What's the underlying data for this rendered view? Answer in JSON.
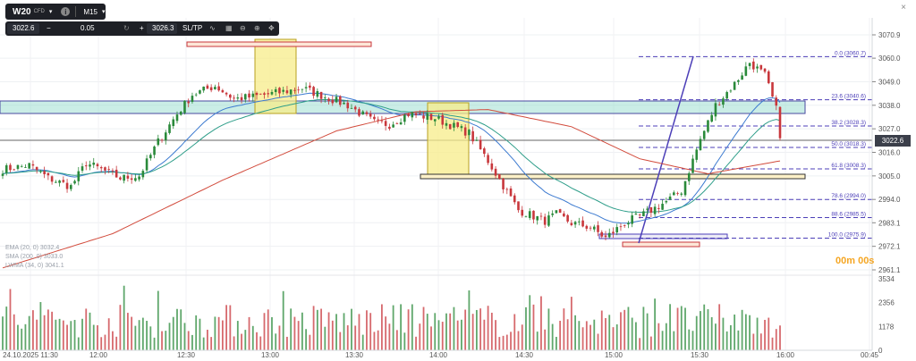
{
  "toolbar": {
    "symbol": "W20",
    "instrument_type": "CFD",
    "info_icon": "info-icon",
    "timeframe": "M15",
    "timeframe_caret": "▾",
    "symbol_caret": "▾"
  },
  "order_bar": {
    "sell_price": "3022.6",
    "minus": "−",
    "volume": "0.05",
    "plus": "+",
    "buy_price": "3026.3",
    "sltp": "SL/TP",
    "tools_icons": [
      "trend-icon",
      "grid-icon",
      "zoom-out-icon",
      "zoom-in-icon",
      "move-icon"
    ]
  },
  "current_price": "3022.6",
  "countdown": "00m 00s",
  "close_icon": "×",
  "legend": [
    {
      "text": "EMA (20, 0)  3032.4",
      "color": "#3c7ad0"
    },
    {
      "text": "SMA (200, 0)  3033.0",
      "color": "#d24b3c"
    },
    {
      "text": "LWMA (34, 0)  3041.1",
      "color": "#2f9e8a"
    }
  ],
  "colors": {
    "up": "#2a8a3a",
    "down": "#c8373c",
    "ema": "#3c7ad0",
    "sma": "#d24b3c",
    "lwma": "#2f9e8a",
    "fib": "#4c3fb8",
    "zone": "#8ad6c8",
    "box": "#f7ec8a"
  },
  "chart_data": {
    "type": "candlestick",
    "symbol": "W20",
    "timeframe": "M15",
    "y_ticks": [
      "3070.9",
      "3060.0",
      "3049.0",
      "3038.0",
      "3027.0",
      "3016.0",
      "3005.0",
      "2994.0",
      "2983.1",
      "2972.1",
      "2961.1"
    ],
    "y_values": [
      3070.9,
      3060.0,
      3049.0,
      3038.0,
      3027.0,
      3016.0,
      3005.0,
      2994.0,
      2983.1,
      2972.1,
      2961.1
    ],
    "ylim": [
      2960,
      3075
    ],
    "x_labels": [
      "24.10.2025 11:30",
      "12:00",
      "12:30",
      "13:00",
      "13:30",
      "14:00",
      "14:30",
      "15:00",
      "15:30",
      "16:00",
      "00:45"
    ],
    "volume_ticks": [
      "3534",
      "2356",
      "1178",
      "0"
    ],
    "volume_values": [
      3534,
      2356,
      1178,
      0
    ],
    "fibonacci": [
      {
        "label": "0.0 (3060.7)",
        "value": 3060.7
      },
      {
        "label": "23.6 (3040.6)",
        "value": 3040.6
      },
      {
        "label": "38.2 (3028.3)",
        "value": 3028.3
      },
      {
        "label": "50.0 (3018.3)",
        "value": 3018.3
      },
      {
        "label": "61.8 (3008.3)",
        "value": 3008.3
      },
      {
        "label": "78.6 (2994.0)",
        "value": 2994.0
      },
      {
        "label": "88.6 (2985.5)",
        "value": 2985.5
      },
      {
        "label": "100.0 (2975.9)",
        "value": 2975.9
      }
    ],
    "last_close": 3022.6,
    "ema_last": 3032.4,
    "sma_last": 3033.0,
    "lwma_last": 3041.1
  }
}
